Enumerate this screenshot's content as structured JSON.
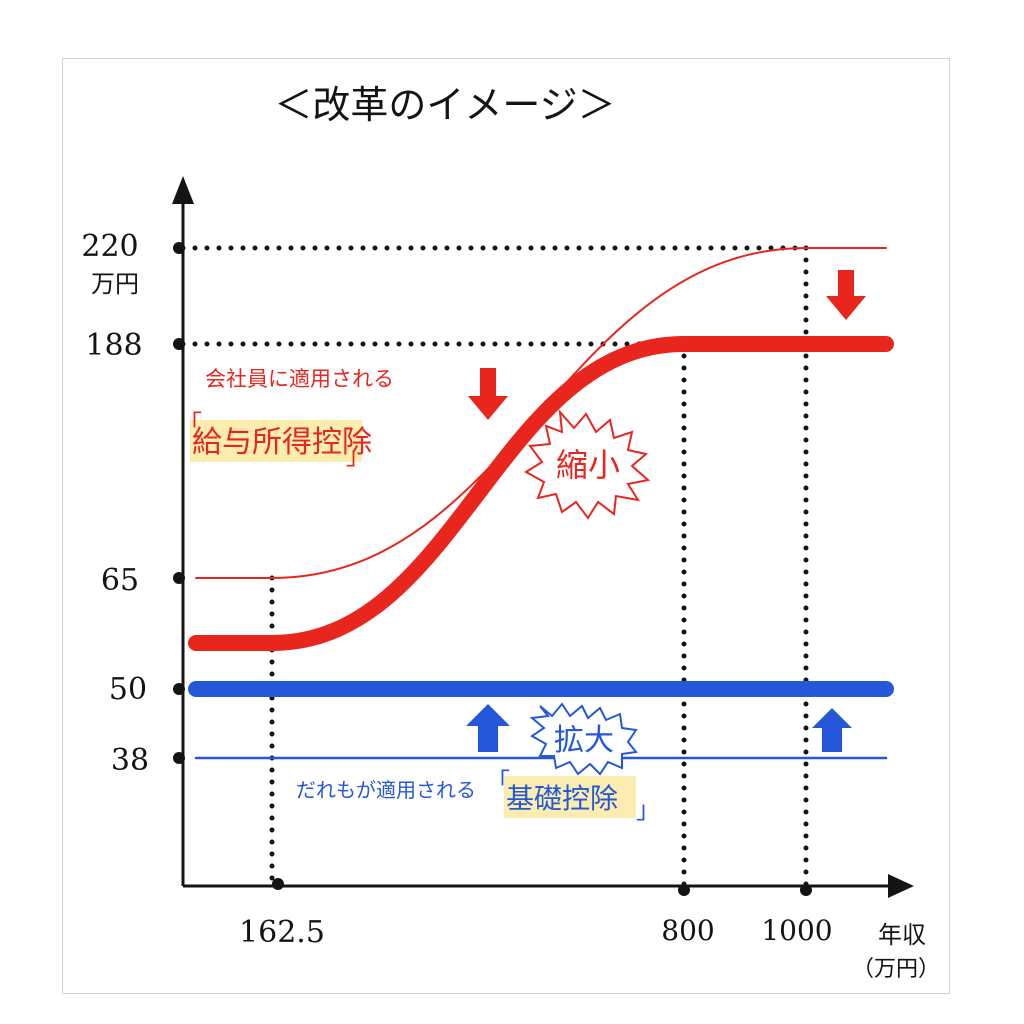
{
  "chart_data": {
    "type": "line",
    "title": "＜改革のイメージ＞",
    "ylabel": "万円",
    "xlabel": "年収",
    "xlabel_unit": "（万円）",
    "x_ticks": [
      "162.5",
      "800",
      "1000"
    ],
    "y_ticks": [
      "220",
      "188",
      "65",
      "50",
      "38"
    ],
    "series": [
      {
        "name": "給与所得控除",
        "label_prefix": "会社員に適用される",
        "label_bracket_open": "「",
        "label_bracket_close": "」",
        "color": "#e8261e",
        "old": {
          "x": [
            0,
            162.5,
            1000,
            1200
          ],
          "y": [
            65,
            65,
            220,
            220
          ]
        },
        "new": {
          "x": [
            0,
            162.5,
            800,
            1200
          ],
          "y": [
            55,
            55,
            188,
            188
          ]
        },
        "change": "縮小"
      },
      {
        "name": "基礎控除",
        "label_prefix": "だれもが適用される",
        "label_bracket_open": "「",
        "label_bracket_close": "」",
        "color": "#2458d8",
        "old": {
          "x": [
            0,
            1200
          ],
          "y": [
            38,
            38
          ]
        },
        "new": {
          "x": [
            0,
            1200
          ],
          "y": [
            50,
            50
          ]
        },
        "change": "拡大"
      }
    ],
    "colors": {
      "axis": "#141414",
      "red": "#e8261e",
      "blue": "#2458d8",
      "highlight": "#fbedb0",
      "text": "#141414"
    }
  }
}
